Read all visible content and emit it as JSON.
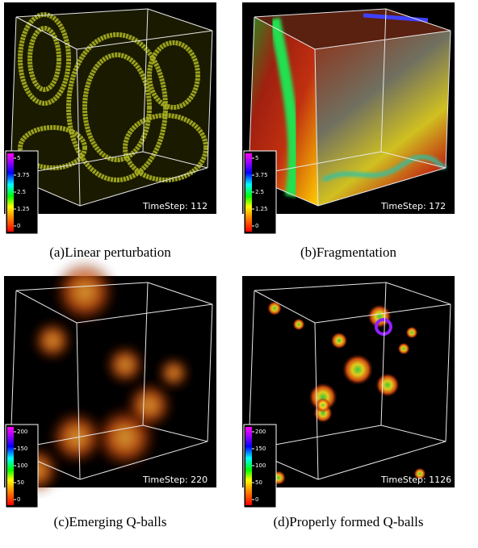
{
  "panels": [
    {
      "timestep": "TimeStep: 112",
      "colorbar_ticks": [
        "5",
        "3.75",
        "2.5",
        "1.25",
        "0"
      ],
      "caption": "(a)Linear perturbation"
    },
    {
      "timestep": "TimeStep: 172",
      "colorbar_ticks": [
        "5",
        "3.75",
        "2.5",
        "1.25",
        "0"
      ],
      "caption": "(b)Fragmentation"
    },
    {
      "timestep": "TimeStep: 220",
      "colorbar_ticks": [
        "200",
        "150",
        "100",
        "50",
        "0"
      ],
      "caption": "(c)Emerging Q-balls"
    },
    {
      "timestep": "TimeStep: 1126",
      "colorbar_ticks": [
        "200",
        "150",
        "100",
        "50",
        "0"
      ],
      "caption": "(d)Properly formed Q-balls"
    }
  ]
}
